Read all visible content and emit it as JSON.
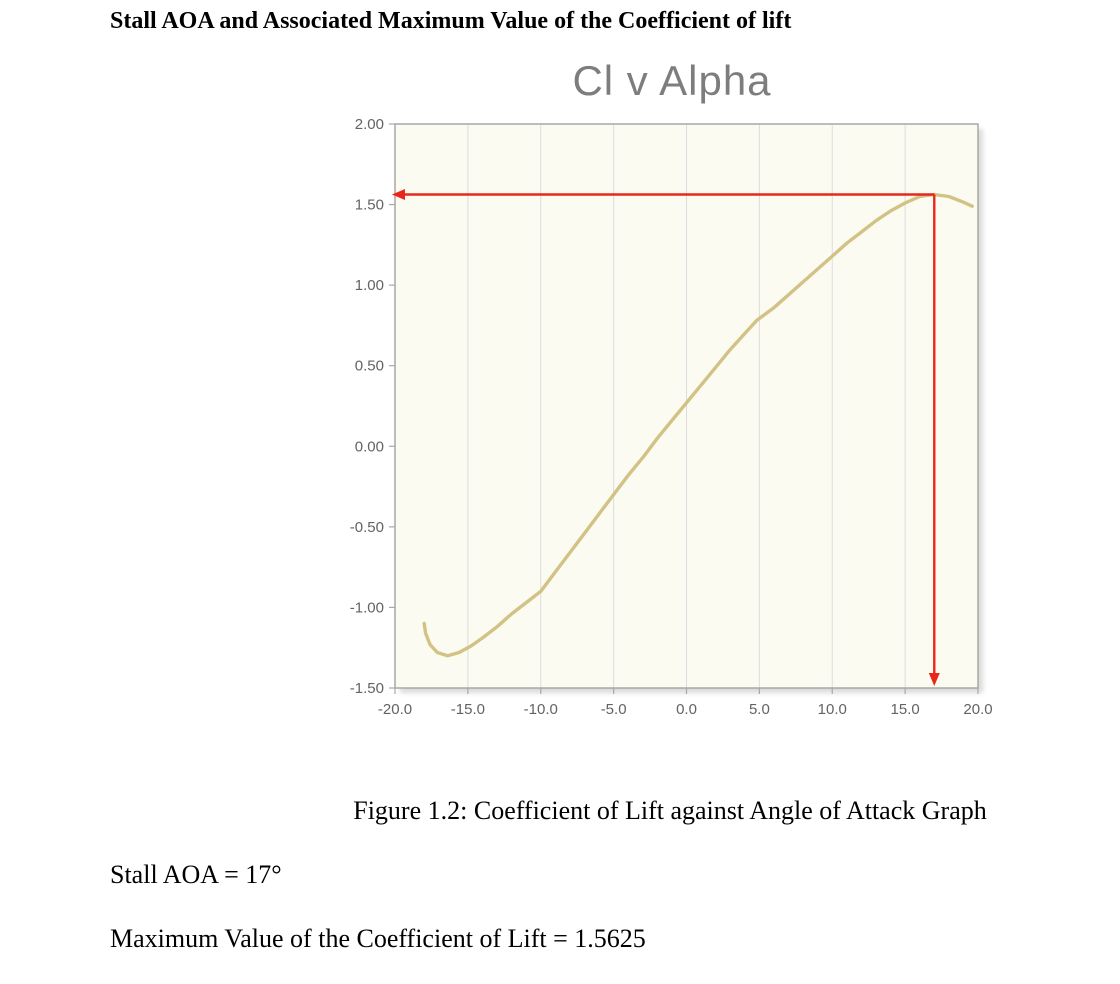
{
  "page": {
    "heading": "Stall AOA and Associated Maximum Value of the Coefficient of lift",
    "figure_caption": "Figure 1.2: Coefficient of Lift against Angle of Attack Graph",
    "stall_text": "Stall AOA = 17°",
    "clmax_text": "Maximum Value of the Coefficient of Lift = 1.5625"
  },
  "chart_data": {
    "type": "line",
    "title": "Cl v Alpha",
    "xlabel": "",
    "ylabel": "",
    "xlim": [
      -20,
      20
    ],
    "ylim": [
      -1.5,
      2.0
    ],
    "x_ticks": [
      -20,
      -15,
      -10,
      -5,
      0,
      5,
      10,
      15,
      20
    ],
    "x_tick_labels": [
      "-20.0",
      "-15.0",
      "-10.0",
      "-5.0",
      "0.0",
      "5.0",
      "10.0",
      "15.0",
      "20.0"
    ],
    "y_ticks": [
      2.0,
      1.5,
      1.0,
      0.5,
      0.0,
      -0.5,
      -1.0,
      -1.5
    ],
    "y_tick_labels": [
      "2.00",
      "1.50",
      "1.00",
      "0.50",
      "0.00",
      "-0.50",
      "-1.00",
      "-1.50"
    ],
    "grid": "vertical",
    "legend": "none",
    "plot_bg_color": "#fcfbf2",
    "grid_color": "#dcdcdc",
    "border_color": "#a8a8a8",
    "tick_label_color": "#636363",
    "series": [
      {
        "name": "Cl",
        "color": "#d2c285",
        "points": [
          [
            -18.0,
            -1.1
          ],
          [
            -17.9,
            -1.16
          ],
          [
            -17.6,
            -1.23
          ],
          [
            -17.1,
            -1.28
          ],
          [
            -16.4,
            -1.3
          ],
          [
            -15.6,
            -1.28
          ],
          [
            -14.8,
            -1.24
          ],
          [
            -14.0,
            -1.19
          ],
          [
            -13.0,
            -1.12
          ],
          [
            -12.0,
            -1.04
          ],
          [
            -11.0,
            -0.97
          ],
          [
            -10.0,
            -0.9
          ],
          [
            -9.0,
            -0.78
          ],
          [
            -8.0,
            -0.66
          ],
          [
            -7.0,
            -0.54
          ],
          [
            -6.0,
            -0.42
          ],
          [
            -5.0,
            -0.3
          ],
          [
            -4.0,
            -0.18
          ],
          [
            -3.0,
            -0.07
          ],
          [
            -2.0,
            0.05
          ],
          [
            -1.0,
            0.16
          ],
          [
            0.0,
            0.27
          ],
          [
            1.0,
            0.38
          ],
          [
            2.0,
            0.49
          ],
          [
            3.0,
            0.6
          ],
          [
            4.0,
            0.7
          ],
          [
            4.8,
            0.78
          ],
          [
            6.0,
            0.86
          ],
          [
            7.0,
            0.94
          ],
          [
            8.0,
            1.02
          ],
          [
            9.0,
            1.1
          ],
          [
            10.0,
            1.18
          ],
          [
            11.0,
            1.26
          ],
          [
            12.0,
            1.33
          ],
          [
            13.0,
            1.4
          ],
          [
            14.0,
            1.46
          ],
          [
            15.0,
            1.51
          ],
          [
            16.0,
            1.55
          ],
          [
            17.0,
            1.5625
          ],
          [
            18.0,
            1.55
          ],
          [
            19.0,
            1.515
          ],
          [
            19.6,
            1.49
          ]
        ]
      }
    ],
    "annotations": {
      "stall_aoa": 17,
      "cl_max": 1.5625,
      "color": "#e8271b",
      "horizontal_arrow": {
        "y": 1.5625,
        "from_x": 17,
        "to_x": -20
      },
      "vertical_arrow": {
        "x": 17,
        "from_y": 1.5625,
        "to_y": -1.5
      }
    }
  }
}
